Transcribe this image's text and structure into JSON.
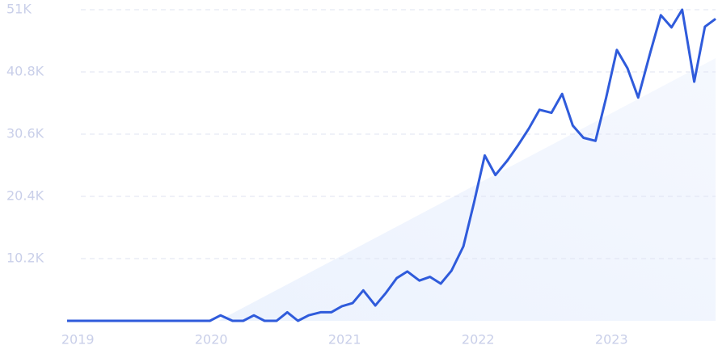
{
  "chart_data": {
    "type": "line",
    "x": [
      2018.92,
      2019.0,
      2019.08,
      2019.17,
      2019.25,
      2019.33,
      2019.41,
      2019.5,
      2019.58,
      2019.66,
      2019.74,
      2019.83,
      2019.91,
      2019.99,
      2020.07,
      2020.16,
      2020.24,
      2020.32,
      2020.4,
      2020.49,
      2020.57,
      2020.65,
      2020.73,
      2020.82,
      2020.9,
      2020.98,
      2021.06,
      2021.14,
      2021.23,
      2021.31,
      2021.39,
      2021.47,
      2021.56,
      2021.64,
      2021.72,
      2021.8,
      2021.89,
      2021.97,
      2022.05,
      2022.13,
      2022.22,
      2022.3,
      2022.38,
      2022.46,
      2022.55,
      2022.63,
      2022.71,
      2022.79,
      2022.88,
      2022.96,
      2023.04,
      2023.12,
      2023.2,
      2023.29,
      2023.37,
      2023.45,
      2023.53,
      2023.62,
      2023.7,
      2023.78
    ],
    "values": [
      0,
      0,
      0,
      0,
      0,
      0,
      0,
      0,
      0,
      0,
      0,
      0,
      0,
      0,
      900,
      0,
      0,
      900,
      0,
      0,
      1400,
      0,
      900,
      1400,
      1400,
      2400,
      2900,
      5000,
      2500,
      4600,
      7000,
      8100,
      6600,
      7200,
      6100,
      8200,
      12200,
      19400,
      27100,
      23900,
      26300,
      28800,
      31500,
      34600,
      34100,
      37200,
      32000,
      30000,
      29500,
      36600,
      44400,
      41400,
      36600,
      43900,
      50100,
      48100,
      51000,
      39200,
      48200,
      49500
    ],
    "color": "#2f5bdb",
    "xlim": [
      2018.92,
      2023.78
    ],
    "xticks": [
      2019,
      2020,
      2021,
      2022,
      2023
    ],
    "ylim": [
      0,
      51000
    ],
    "yticks": [
      {
        "value": 10200,
        "label": "10.2K"
      },
      {
        "value": 20400,
        "label": "20.4K"
      },
      {
        "value": 30600,
        "label": "30.6K"
      },
      {
        "value": 40800,
        "label": "40.8K"
      },
      {
        "value": 51000,
        "label": "51K"
      }
    ],
    "grid": true
  }
}
